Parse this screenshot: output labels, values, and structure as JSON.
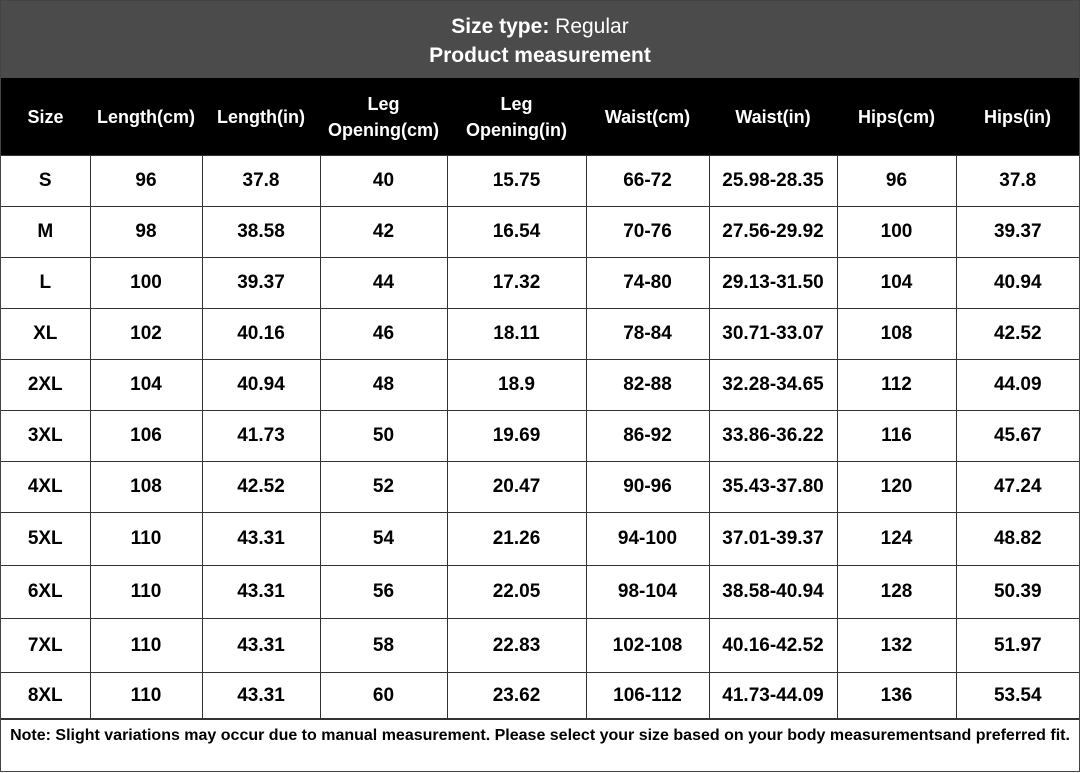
{
  "header": {
    "size_type_label": "Size type:",
    "size_type_value": "Regular",
    "subtitle": "Product measurement"
  },
  "table": {
    "columns": [
      "Size",
      "Length(cm)",
      "Length(in)",
      "Leg Opening(cm)",
      "Leg Opening(in)",
      "Waist(cm)",
      "Waist(in)",
      "Hips(cm)",
      "Hips(in)"
    ],
    "rows": [
      [
        "S",
        "96",
        "37.8",
        "40",
        "15.75",
        "66-72",
        "25.98-28.35",
        "96",
        "37.8"
      ],
      [
        "M",
        "98",
        "38.58",
        "42",
        "16.54",
        "70-76",
        "27.56-29.92",
        "100",
        "39.37"
      ],
      [
        "L",
        "100",
        "39.37",
        "44",
        "17.32",
        "74-80",
        "29.13-31.50",
        "104",
        "40.94"
      ],
      [
        "XL",
        "102",
        "40.16",
        "46",
        "18.11",
        "78-84",
        "30.71-33.07",
        "108",
        "42.52"
      ],
      [
        "2XL",
        "104",
        "40.94",
        "48",
        "18.9",
        "82-88",
        "32.28-34.65",
        "112",
        "44.09"
      ],
      [
        "3XL",
        "106",
        "41.73",
        "50",
        "19.69",
        "86-92",
        "33.86-36.22",
        "116",
        "45.67"
      ],
      [
        "4XL",
        "108",
        "42.52",
        "52",
        "20.47",
        "90-96",
        "35.43-37.80",
        "120",
        "47.24"
      ],
      [
        "5XL",
        "110",
        "43.31",
        "54",
        "21.26",
        "94-100",
        "37.01-39.37",
        "124",
        "48.82"
      ],
      [
        "6XL",
        "110",
        "43.31",
        "56",
        "22.05",
        "98-104",
        "38.58-40.94",
        "128",
        "50.39"
      ],
      [
        "7XL",
        "110",
        "43.31",
        "58",
        "22.83",
        "102-108",
        "40.16-42.52",
        "132",
        "51.97"
      ],
      [
        "8XL",
        "110",
        "43.31",
        "60",
        "23.62",
        "106-112",
        "41.73-44.09",
        "136",
        "53.54"
      ]
    ]
  },
  "note": "Note: Slight variations may occur due to manual measurement. Please select your size based on your body measurementsand preferred fit."
}
